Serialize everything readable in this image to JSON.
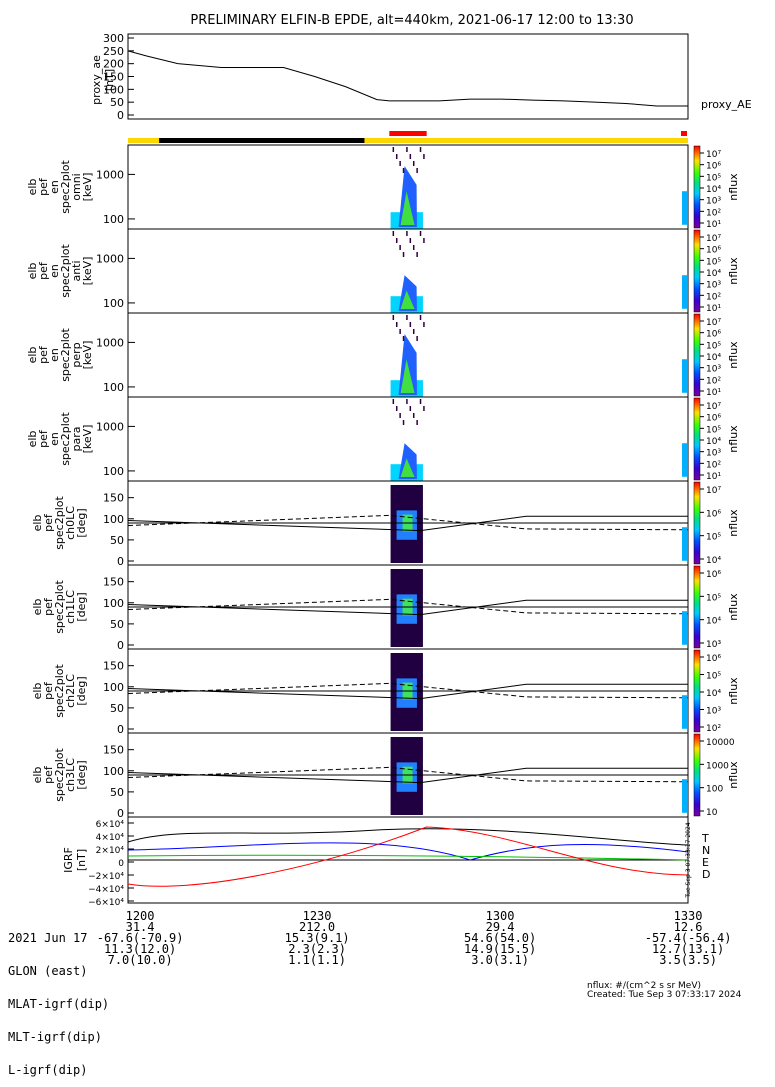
{
  "title": "PRELIMINARY ELFIN-B EPDE, alt=440km, 2021-06-17 12:00 to 13:30",
  "colors": {
    "yellow": "#ffd700",
    "black": "#000000",
    "red": "#ff0000"
  },
  "chart_data": [
    {
      "type": "line",
      "name": "proxy_ae",
      "ylabel": [
        "proxy_ae",
        "[nT]"
      ],
      "legend": "proxy_AE",
      "ylim": [
        0,
        300
      ],
      "yticks": [
        "300",
        "250",
        "200",
        "150",
        "100",
        "50",
        "0"
      ],
      "x": [
        0,
        3,
        8,
        15,
        20,
        25,
        30,
        35,
        40,
        42,
        45,
        50,
        55,
        60,
        65,
        70,
        75,
        80,
        85,
        88,
        90
      ],
      "values": [
        250,
        230,
        200,
        185,
        185,
        185,
        150,
        110,
        60,
        55,
        55,
        55,
        62,
        62,
        58,
        55,
        50,
        45,
        35,
        35,
        35
      ]
    },
    {
      "type": "heatmap",
      "name": "omni",
      "ylabel": [
        "elb",
        "pef",
        "en",
        "spec2plot",
        "omni",
        "[keV]"
      ],
      "yticks": [
        "1000",
        "100"
      ],
      "cbar_label": "nflux",
      "cbar_ticks": [
        "10⁷",
        "10⁶",
        "10⁵",
        "10⁴",
        "10³",
        "10²",
        "10¹"
      ]
    },
    {
      "type": "heatmap",
      "name": "anti",
      "ylabel": [
        "elb",
        "pef",
        "en",
        "spec2plot",
        "anti",
        "[keV]"
      ],
      "yticks": [
        "1000",
        "100"
      ],
      "cbar_label": "nflux",
      "cbar_ticks": [
        "10⁷",
        "10⁶",
        "10⁵",
        "10⁴",
        "10³",
        "10²",
        "10¹"
      ]
    },
    {
      "type": "heatmap",
      "name": "perp",
      "ylabel": [
        "elb",
        "pef",
        "en",
        "spec2plot",
        "perp",
        "[keV]"
      ],
      "yticks": [
        "1000",
        "100"
      ],
      "cbar_label": "nflux",
      "cbar_ticks": [
        "10⁷",
        "10⁶",
        "10⁵",
        "10⁴",
        "10³",
        "10²",
        "10¹"
      ]
    },
    {
      "type": "heatmap",
      "name": "para",
      "ylabel": [
        "elb",
        "pef",
        "en",
        "spec2plot",
        "para",
        "[keV]"
      ],
      "yticks": [
        "1000",
        "100"
      ],
      "cbar_label": "nflux",
      "cbar_ticks": [
        "10⁷",
        "10⁶",
        "10⁵",
        "10⁴",
        "10³",
        "10²",
        "10¹"
      ]
    },
    {
      "type": "heatmap",
      "name": "ch0LC",
      "ylabel": [
        "elb",
        "pef",
        "spec2plot",
        "ch0LC",
        "[deg]"
      ],
      "yticks": [
        "150",
        "100",
        "50",
        "0"
      ],
      "cbar_label": "nflux",
      "cbar_ticks": [
        "10⁷",
        "10⁶",
        "10⁵",
        "10⁴"
      ]
    },
    {
      "type": "heatmap",
      "name": "ch1LC",
      "ylabel": [
        "elb",
        "pef",
        "spec2plot",
        "ch1LC",
        "[deg]"
      ],
      "yticks": [
        "150",
        "100",
        "50",
        "0"
      ],
      "cbar_label": "nflux",
      "cbar_ticks": [
        "10⁶",
        "10⁵",
        "10⁴",
        "10³"
      ]
    },
    {
      "type": "heatmap",
      "name": "ch2LC",
      "ylabel": [
        "elb",
        "pef",
        "spec2plot",
        "ch2LC",
        "[deg]"
      ],
      "yticks": [
        "150",
        "100",
        "50",
        "0"
      ],
      "cbar_label": "nflux",
      "cbar_ticks": [
        "10⁶",
        "10⁵",
        "10⁴",
        "10³",
        "10²"
      ]
    },
    {
      "type": "heatmap",
      "name": "ch3LC",
      "ylabel": [
        "elb",
        "pef",
        "spec2plot",
        "ch3LC",
        "[deg]"
      ],
      "yticks": [
        "150",
        "100",
        "50",
        "0"
      ],
      "cbar_label": "nflux",
      "cbar_ticks": [
        "10000",
        "1000",
        "100",
        "10"
      ]
    },
    {
      "type": "line",
      "name": "IGRF",
      "ylabel": [
        "IGRF",
        "[nT]"
      ],
      "yticks": [
        "6×10⁴",
        "4×10⁴",
        "2×10⁴",
        "0",
        "−2×10⁴",
        "−4×10⁴",
        "−6×10⁴"
      ],
      "legend": [
        "T",
        "N",
        "E",
        "D"
      ],
      "series_colors": [
        "#000000",
        "#0000ff",
        "#00c000",
        "#ff0000"
      ]
    }
  ],
  "footer": {
    "rows": [
      [
        "2021 Jun 17",
        "1200",
        "1230",
        "1300",
        "1330"
      ],
      [
        "GLON (east)",
        "31.4",
        "212.0",
        "29.4",
        "12.6"
      ],
      [
        "MLAT-igrf(dip)",
        "-67.6(-70.9)",
        "15.3(9.1)",
        "54.6(54.0)",
        "-57.4(-56.4)"
      ],
      [
        "MLT-igrf(dip)",
        "11.3(12.0)",
        "2.3(2.3)",
        "14.9(15.5)",
        "12.7(13.1)"
      ],
      [
        "L-igrf(dip)",
        "7.0(10.0)",
        "1.1(1.1)",
        "3.0(3.1)",
        "3.5(3.5)"
      ]
    ]
  },
  "credit": {
    "units": "nflux: #/(cm^2 s sr MeV)",
    "created": "Created: Tue Sep  3 07:33:17 2024"
  },
  "side_stamp": "Tue Sep  3 07:33:17 2024"
}
